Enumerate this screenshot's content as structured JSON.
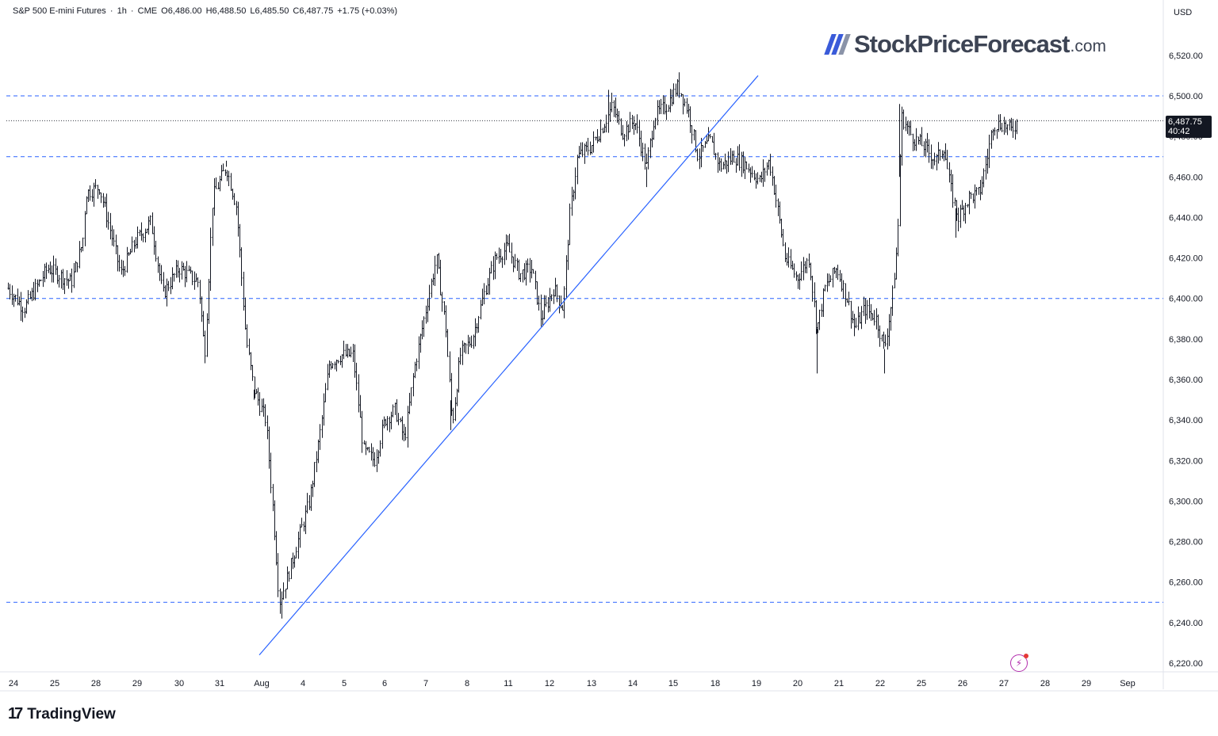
{
  "legend": {
    "symbol": "S&P 500 E-mini Futures",
    "interval": "1h",
    "exchange": "CME",
    "open": "O6,486.00",
    "high": "H6,488.50",
    "low": "L6,485.50",
    "close": "C6,487.75",
    "change": "+1.75 (+0.03%)"
  },
  "currency": "USD",
  "brand": {
    "name": "StockPriceForecast",
    "tld": ".com",
    "slash_color": "#3a5bd9"
  },
  "watermark": "TradingView",
  "last_price": {
    "value": "6,487.75",
    "countdown": "40:42"
  },
  "colors": {
    "candle": "#131722",
    "support_line": "#2962ff",
    "trendline": "#2962ff",
    "axis_text": "#131722",
    "badge": "#b32dad"
  },
  "chart_data": {
    "type": "candlestick",
    "title": "",
    "xlabel": "",
    "ylabel": "",
    "ylim": [
      6215,
      6535
    ],
    "y_ticks": [
      6220,
      6240,
      6260,
      6280,
      6300,
      6320,
      6340,
      6360,
      6380,
      6400,
      6420,
      6440,
      6460,
      6480,
      6500,
      6520
    ],
    "y_tick_labels": [
      "6,220.00",
      "6,240.00",
      "6,260.00",
      "6,280.00",
      "6,300.00",
      "6,320.00",
      "6,340.00",
      "6,360.00",
      "6,380.00",
      "6,400.00",
      "6,420.00",
      "6,440.00",
      "6,460.00",
      "6,480.00",
      "6,500.00",
      "6,520.00"
    ],
    "x_tick_labels": [
      "24",
      "25",
      "28",
      "29",
      "30",
      "31",
      "Aug",
      "4",
      "5",
      "6",
      "7",
      "8",
      "11",
      "12",
      "13",
      "14",
      "15",
      "18",
      "19",
      "20",
      "21",
      "22",
      "25",
      "26",
      "27",
      "28",
      "29",
      "Sep"
    ],
    "horizontal_levels": [
      6500,
      6470,
      6400,
      6250
    ],
    "last_price_level": 6487.75,
    "trendline": {
      "from": {
        "date": "Aug 1",
        "price": 6224
      },
      "to": {
        "date": "Aug 19",
        "price": 6510
      }
    },
    "daily_path": [
      {
        "date": "Jul 24",
        "close": 6405
      },
      {
        "date": "Jul 25",
        "close": 6452
      },
      {
        "date": "Jul 28",
        "close": 6432
      },
      {
        "date": "Jul 29",
        "close": 6405
      },
      {
        "date": "Jul 30",
        "close": 6420
      },
      {
        "date": "Jul 31",
        "close": 6360
      },
      {
        "date": "Aug 1",
        "close": 6245
      },
      {
        "date": "Aug 4",
        "close": 6300
      },
      {
        "date": "Aug 5",
        "close": 6368
      },
      {
        "date": "Aug 6",
        "close": 6345
      },
      {
        "date": "Aug 7",
        "close": 6398
      },
      {
        "date": "Aug 8",
        "close": 6380
      },
      {
        "date": "Aug 11",
        "close": 6425
      },
      {
        "date": "Aug 12",
        "close": 6402
      },
      {
        "date": "Aug 13",
        "close": 6475
      },
      {
        "date": "Aug 14",
        "close": 6482
      },
      {
        "date": "Aug 15",
        "close": 6475
      },
      {
        "date": "Aug 18",
        "close": 6470
      },
      {
        "date": "Aug 19",
        "close": 6460
      },
      {
        "date": "Aug 20",
        "close": 6405
      },
      {
        "date": "Aug 21",
        "close": 6385
      },
      {
        "date": "Aug 22",
        "close": 6490
      },
      {
        "date": "Aug 25",
        "close": 6462
      },
      {
        "date": "Aug 26",
        "close": 6450
      },
      {
        "date": "Aug 27",
        "close": 6487.75
      }
    ]
  }
}
